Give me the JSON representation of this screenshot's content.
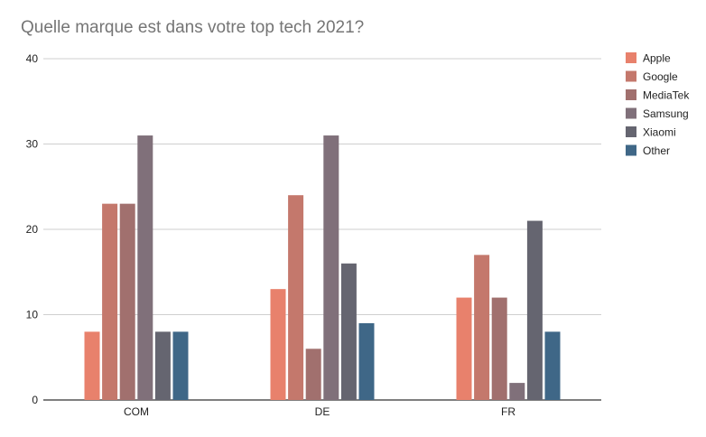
{
  "chart_data": {
    "type": "bar",
    "title": "Quelle marque est dans votre top tech 2021?",
    "categories": [
      "COM",
      "DE",
      "FR"
    ],
    "series": [
      {
        "name": "Apple",
        "values": [
          8,
          13,
          12
        ],
        "color": "#e8816c"
      },
      {
        "name": "Google",
        "values": [
          23,
          24,
          17
        ],
        "color": "#c4786c"
      },
      {
        "name": "MediaTek",
        "values": [
          23,
          6,
          12
        ],
        "color": "#a1706e"
      },
      {
        "name": "Samsung",
        "values": [
          31,
          31,
          2
        ],
        "color": "#80707a"
      },
      {
        "name": "Xiaomi",
        "values": [
          8,
          16,
          21
        ],
        "color": "#656570"
      },
      {
        "name": "Other",
        "values": [
          8,
          9,
          8
        ],
        "color": "#3f6787"
      }
    ],
    "ylim": [
      0,
      40
    ],
    "yticks": [
      0,
      10,
      20,
      30,
      40
    ],
    "grid": true,
    "legend": "right",
    "xlabel": "",
    "ylabel": ""
  }
}
